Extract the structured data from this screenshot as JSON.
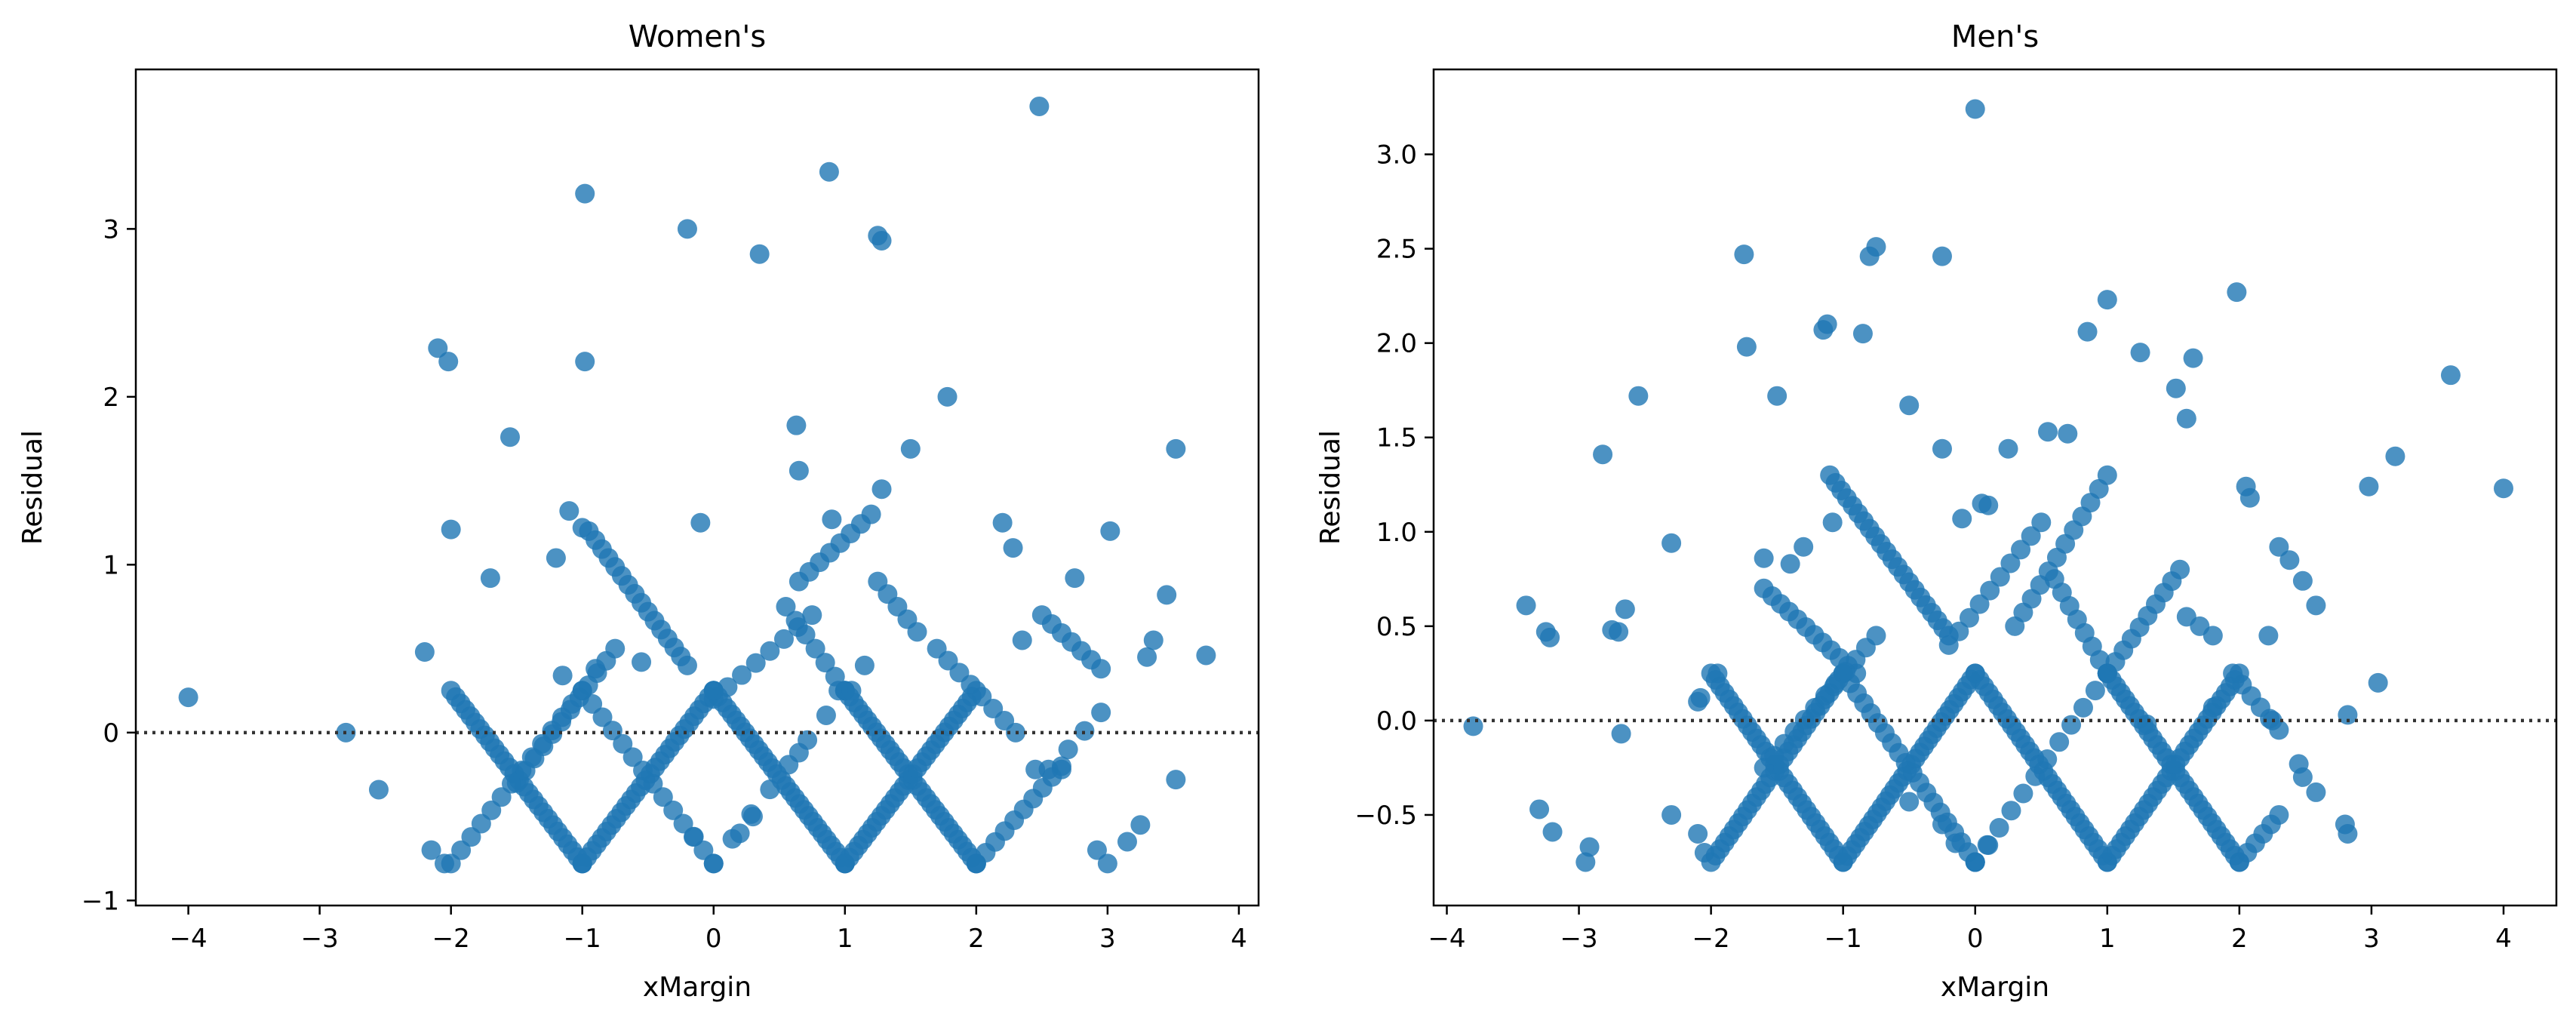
{
  "chart_data": [
    {
      "type": "scatter",
      "title": "Women's",
      "xlabel": "xMargin",
      "ylabel": "Residual",
      "xlim": [
        -4.4,
        4.15
      ],
      "ylim": [
        -1.03,
        3.95
      ],
      "xticks": [
        -4,
        -3,
        -2,
        -1,
        0,
        1,
        2,
        3,
        4
      ],
      "xtick_labels": [
        "−4",
        "−3",
        "−2",
        "−1",
        "0",
        "1",
        "2",
        "3",
        "4"
      ],
      "yticks": [
        -1,
        0,
        1,
        2,
        3
      ],
      "ytick_labels": [
        "−1",
        "0",
        "1",
        "2",
        "3"
      ],
      "reference_line": {
        "y": 0,
        "style": "dotted",
        "color": "#333333"
      },
      "grid": false,
      "marker_color": "#1f77b4",
      "series": [
        {
          "points": [
            [
              -4.0,
              0.21
            ],
            [
              -2.8,
              0.0
            ],
            [
              -2.55,
              -0.34
            ],
            [
              -2.2,
              0.48
            ],
            [
              -2.1,
              2.29
            ],
            [
              -2.02,
              2.21
            ],
            [
              -2.0,
              1.21
            ],
            [
              -1.55,
              1.76
            ],
            [
              -0.98,
              3.21
            ],
            [
              -0.98,
              2.21
            ],
            [
              -0.2,
              3.0
            ],
            [
              0.35,
              2.85
            ],
            [
              0.88,
              3.34
            ],
            [
              1.25,
              2.96
            ],
            [
              1.28,
              2.93
            ],
            [
              2.48,
              3.73
            ],
            [
              0.63,
              1.83
            ],
            [
              0.65,
              1.56
            ],
            [
              1.5,
              1.69
            ],
            [
              1.78,
              2.0
            ],
            [
              3.52,
              1.69
            ],
            [
              3.02,
              1.2
            ],
            [
              3.75,
              0.46
            ],
            [
              3.52,
              -0.28
            ],
            [
              3.0,
              -0.78
            ],
            [
              2.92,
              -0.7
            ],
            [
              2.2,
              1.25
            ],
            [
              2.28,
              1.1
            ],
            [
              1.28,
              1.45
            ],
            [
              0.9,
              1.27
            ],
            [
              -1.1,
              1.32
            ],
            [
              -1.0,
              1.22
            ],
            [
              -0.55,
              0.42
            ],
            [
              -0.15,
              -0.62
            ],
            [
              0.3,
              -0.5
            ],
            [
              0.2,
              -0.6
            ],
            [
              -0.1,
              1.25
            ],
            [
              -1.2,
              1.04
            ],
            [
              -1.7,
              0.92
            ],
            [
              -2.15,
              -0.7
            ],
            [
              -2.05,
              -0.78
            ],
            [
              -1.0,
              -0.78
            ],
            [
              2.0,
              -0.78
            ],
            [
              1.0,
              -0.78
            ],
            [
              0.0,
              0.25
            ],
            [
              0.95,
              0.25
            ],
            [
              1.05,
              0.25
            ],
            [
              1.15,
              0.4
            ],
            [
              2.35,
              0.55
            ],
            [
              2.75,
              0.92
            ],
            [
              3.35,
              0.55
            ],
            [
              3.3,
              0.45
            ],
            [
              3.45,
              0.82
            ],
            [
              2.45,
              -0.22
            ],
            [
              2.55,
              -0.22
            ],
            [
              2.65,
              -0.22
            ],
            [
              3.25,
              -0.55
            ],
            [
              3.15,
              -0.65
            ],
            [
              0.65,
              -0.12
            ],
            [
              -1.15,
              0.34
            ],
            [
              -0.9,
              0.38
            ]
          ]
        }
      ],
      "patterns": [
        {
          "x_start": -2.0,
          "x_end": -1.0,
          "y_start": 0.25,
          "y_end": -0.78,
          "count": 28
        },
        {
          "x_start": -2.0,
          "x_end": -1.0,
          "y_start": -0.78,
          "y_end": 0.25,
          "count": 14
        },
        {
          "x_start": -1.5,
          "x_end": -0.75,
          "y_start": -0.3,
          "y_end": 0.5,
          "count": 12
        },
        {
          "x_start": -1.0,
          "x_end": 0.0,
          "y_start": 0.25,
          "y_end": -0.78,
          "count": 14
        },
        {
          "x_start": -1.0,
          "x_end": 0.0,
          "y_start": -0.78,
          "y_end": 0.25,
          "count": 28
        },
        {
          "x_start": -0.95,
          "x_end": -0.2,
          "y_start": 1.2,
          "y_end": 0.4,
          "count": 16
        },
        {
          "x_start": 0.0,
          "x_end": 1.0,
          "y_start": 0.25,
          "y_end": -0.78,
          "count": 30
        },
        {
          "x_start": 0.0,
          "x_end": 1.0,
          "y_start": -0.78,
          "y_end": 0.25,
          "count": 8
        },
        {
          "x_start": 0.0,
          "x_end": 0.75,
          "y_start": 0.2,
          "y_end": 0.7,
          "count": 8
        },
        {
          "x_start": 0.65,
          "x_end": 1.2,
          "y_start": 0.9,
          "y_end": 1.3,
          "count": 8
        },
        {
          "x_start": 1.0,
          "x_end": 2.0,
          "y_start": 0.25,
          "y_end": -0.78,
          "count": 30
        },
        {
          "x_start": 1.0,
          "x_end": 2.0,
          "y_start": -0.78,
          "y_end": 0.25,
          "count": 30
        },
        {
          "x_start": 0.55,
          "x_end": 1.0,
          "y_start": 0.75,
          "y_end": 0.25,
          "count": 7
        },
        {
          "x_start": 1.25,
          "x_end": 1.55,
          "y_start": 0.9,
          "y_end": 0.6,
          "count": 5
        },
        {
          "x_start": 2.0,
          "x_end": 2.65,
          "y_start": -0.78,
          "y_end": -0.2,
          "count": 10
        },
        {
          "x_start": 1.7,
          "x_end": 2.3,
          "y_start": 0.5,
          "y_end": 0.0,
          "count": 8
        },
        {
          "x_start": 2.5,
          "x_end": 2.95,
          "y_start": 0.7,
          "y_end": 0.38,
          "count": 7
        },
        {
          "x_start": 2.7,
          "x_end": 2.95,
          "y_start": -0.1,
          "y_end": 0.12,
          "count": 3
        }
      ]
    },
    {
      "type": "scatter",
      "title": "Men's",
      "xlabel": "xMargin",
      "ylabel": "Residual",
      "xlim": [
        -4.1,
        4.4
      ],
      "ylim": [
        -0.98,
        3.45
      ],
      "xticks": [
        -4,
        -3,
        -2,
        -1,
        0,
        1,
        2,
        3,
        4
      ],
      "xtick_labels": [
        "−4",
        "−3",
        "−2",
        "−1",
        "0",
        "1",
        "2",
        "3",
        "4"
      ],
      "yticks": [
        -0.5,
        0.0,
        0.5,
        1.0,
        1.5,
        2.0,
        2.5,
        3.0
      ],
      "ytick_labels": [
        "−0.5",
        "0.0",
        "0.5",
        "1.0",
        "1.5",
        "2.0",
        "2.5",
        "3.0"
      ],
      "reference_line": {
        "y": 0,
        "style": "dotted",
        "color": "#333333"
      },
      "grid": false,
      "marker_color": "#1f77b4",
      "series": [
        {
          "points": [
            [
              -3.8,
              -0.03
            ],
            [
              -3.4,
              0.61
            ],
            [
              -3.25,
              0.47
            ],
            [
              -3.22,
              0.44
            ],
            [
              -3.3,
              -0.47
            ],
            [
              -3.2,
              -0.59
            ],
            [
              -2.95,
              -0.75
            ],
            [
              -2.92,
              -0.67
            ],
            [
              -2.82,
              1.41
            ],
            [
              -2.75,
              0.48
            ],
            [
              -2.65,
              0.59
            ],
            [
              -2.55,
              1.72
            ],
            [
              -2.3,
              0.94
            ],
            [
              -2.3,
              -0.5
            ],
            [
              -2.1,
              -0.6
            ],
            [
              -1.75,
              2.47
            ],
            [
              -1.73,
              1.98
            ],
            [
              -1.6,
              0.86
            ],
            [
              -1.5,
              1.72
            ],
            [
              -1.15,
              2.07
            ],
            [
              -1.12,
              2.1
            ],
            [
              -0.8,
              2.46
            ],
            [
              -0.75,
              2.51
            ],
            [
              -0.85,
              2.05
            ],
            [
              -0.25,
              2.46
            ],
            [
              -0.5,
              1.67
            ],
            [
              -0.25,
              1.44
            ],
            [
              0.0,
              3.24
            ],
            [
              0.25,
              1.44
            ],
            [
              0.55,
              1.53
            ],
            [
              0.7,
              1.52
            ],
            [
              0.85,
              2.06
            ],
            [
              1.0,
              2.23
            ],
            [
              1.25,
              1.95
            ],
            [
              1.65,
              1.92
            ],
            [
              1.52,
              1.76
            ],
            [
              1.6,
              1.6
            ],
            [
              1.98,
              2.27
            ],
            [
              2.05,
              1.24
            ],
            [
              2.08,
              1.18
            ],
            [
              2.22,
              0.45
            ],
            [
              2.3,
              0.92
            ],
            [
              2.38,
              0.85
            ],
            [
              2.48,
              0.74
            ],
            [
              2.58,
              0.61
            ],
            [
              2.45,
              -0.23
            ],
            [
              2.48,
              -0.3
            ],
            [
              2.58,
              -0.38
            ],
            [
              2.8,
              -0.55
            ],
            [
              2.82,
              -0.6
            ],
            [
              2.82,
              0.03
            ],
            [
              2.98,
              1.24
            ],
            [
              3.05,
              0.2
            ],
            [
              3.18,
              1.4
            ],
            [
              3.6,
              1.83
            ],
            [
              4.0,
              1.23
            ],
            [
              0.05,
              1.15
            ],
            [
              0.1,
              1.14
            ],
            [
              -0.1,
              1.07
            ],
            [
              0.0,
              -0.75
            ],
            [
              0.1,
              -0.66
            ],
            [
              -0.5,
              -0.43
            ],
            [
              -0.25,
              -0.55
            ],
            [
              -0.15,
              -0.65
            ],
            [
              -1.4,
              0.83
            ],
            [
              -1.08,
              1.05
            ],
            [
              -2.1,
              0.1
            ],
            [
              -2.08,
              0.12
            ],
            [
              -1.95,
              0.25
            ],
            [
              -2.05,
              -0.7
            ],
            [
              -1.3,
              0.92
            ],
            [
              1.3,
              -0.02
            ],
            [
              1.8,
              0.07
            ],
            [
              2.25,
              0.0
            ],
            [
              -2.7,
              0.47
            ],
            [
              -2.68,
              -0.07
            ]
          ]
        }
      ],
      "patterns": [
        {
          "x_start": -2.0,
          "x_end": -1.0,
          "y_start": 0.25,
          "y_end": -0.75,
          "count": 30
        },
        {
          "x_start": -2.0,
          "x_end": -1.0,
          "y_start": -0.75,
          "y_end": 0.25,
          "count": 30
        },
        {
          "x_start": -1.0,
          "x_end": 0.0,
          "y_start": 0.25,
          "y_end": -0.75,
          "count": 20
        },
        {
          "x_start": -1.0,
          "x_end": 0.0,
          "y_start": -0.75,
          "y_end": 0.25,
          "count": 32
        },
        {
          "x_start": -1.6,
          "x_end": -0.9,
          "y_start": 0.7,
          "y_end": 0.25,
          "count": 12
        },
        {
          "x_start": -1.6,
          "x_end": -0.75,
          "y_start": -0.25,
          "y_end": 0.45,
          "count": 12
        },
        {
          "x_start": -1.1,
          "x_end": -0.2,
          "y_start": 1.3,
          "y_end": 0.45,
          "count": 22
        },
        {
          "x_start": -0.2,
          "x_end": 0.5,
          "y_start": 0.4,
          "y_end": 1.05,
          "count": 10
        },
        {
          "x_start": 0.0,
          "x_end": 1.0,
          "y_start": 0.25,
          "y_end": -0.75,
          "count": 30
        },
        {
          "x_start": 0.0,
          "x_end": 1.0,
          "y_start": -0.75,
          "y_end": 0.25,
          "count": 12
        },
        {
          "x_start": 0.3,
          "x_end": 1.0,
          "y_start": 0.5,
          "y_end": 1.3,
          "count": 12
        },
        {
          "x_start": 0.6,
          "x_end": 1.0,
          "y_start": 0.75,
          "y_end": 0.25,
          "count": 8
        },
        {
          "x_start": 1.0,
          "x_end": 2.0,
          "y_start": 0.25,
          "y_end": -0.75,
          "count": 30
        },
        {
          "x_start": 1.0,
          "x_end": 2.0,
          "y_start": -0.75,
          "y_end": 0.25,
          "count": 30
        },
        {
          "x_start": 1.0,
          "x_end": 1.55,
          "y_start": 0.25,
          "y_end": 0.8,
          "count": 10
        },
        {
          "x_start": 1.95,
          "x_end": 2.3,
          "y_start": 0.25,
          "y_end": -0.05,
          "count": 6
        },
        {
          "x_start": 2.0,
          "x_end": 2.3,
          "y_start": -0.75,
          "y_end": -0.5,
          "count": 6
        },
        {
          "x_start": 1.6,
          "x_end": 1.8,
          "y_start": 0.55,
          "y_end": 0.45,
          "count": 3
        }
      ]
    }
  ]
}
